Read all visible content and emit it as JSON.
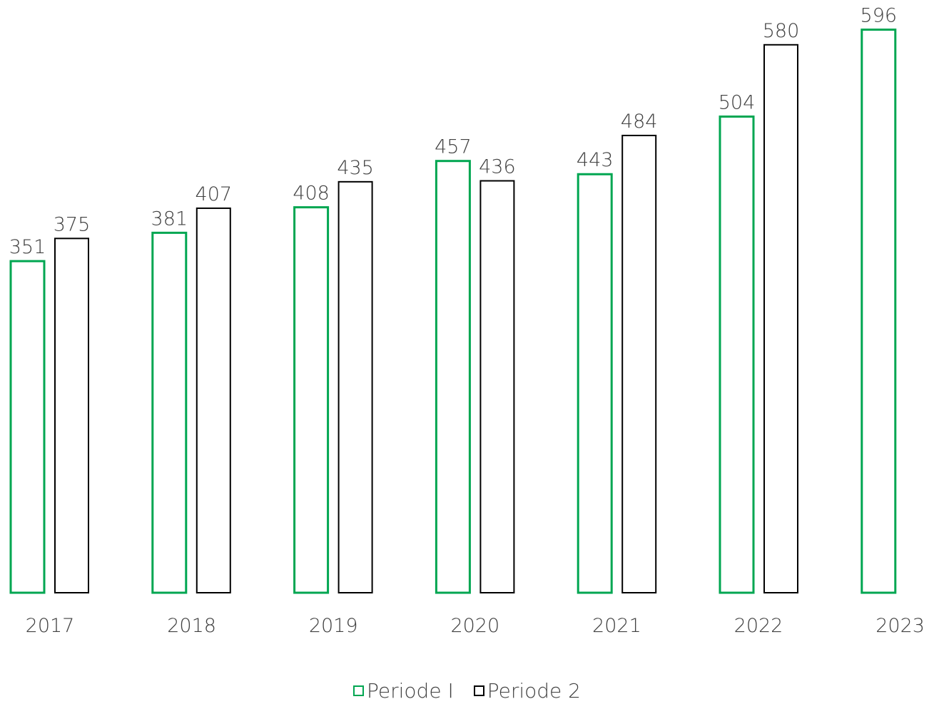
{
  "chart_data": {
    "type": "bar",
    "categories": [
      "2017",
      "2018",
      "2019",
      "2020",
      "2021",
      "2022",
      "2023"
    ],
    "series": [
      {
        "name": "Periode I",
        "values": [
          351,
          381,
          408,
          457,
          443,
          504,
          596
        ],
        "stroke": "#00a651"
      },
      {
        "name": "Periode 2",
        "values": [
          375,
          407,
          435,
          436,
          484,
          580,
          null
        ],
        "stroke": "#000000"
      }
    ],
    "title": "",
    "xlabel": "",
    "ylabel": "",
    "ylim": [
      0,
      650
    ],
    "grid": false,
    "legend_position": "bottom",
    "data_labels": true
  }
}
